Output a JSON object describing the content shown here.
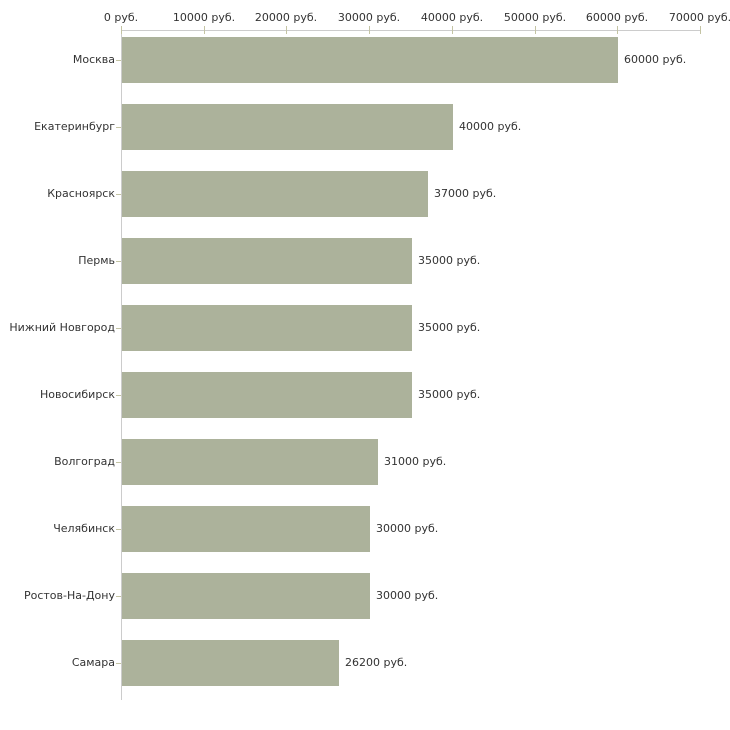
{
  "chart_data": {
    "type": "bar",
    "orientation": "horizontal",
    "title": "",
    "xlabel": "",
    "ylabel": "",
    "categories": [
      "Москва",
      "Екатеринбург",
      "Красноярск",
      "Пермь",
      "Нижний Новгород",
      "Новосибирск",
      "Волгоград",
      "Челябинск",
      "Ростов-На-Дону",
      "Самара"
    ],
    "values": [
      60000,
      40000,
      37000,
      35000,
      35000,
      35000,
      31000,
      30000,
      30000,
      26200
    ],
    "value_labels": [
      "60000 руб.",
      "40000 руб.",
      "37000 руб.",
      "35000 руб.",
      "35000 руб.",
      "35000 руб.",
      "31000 руб.",
      "30000 руб.",
      "30000 руб.",
      "26200 руб."
    ],
    "x_ticks": [
      {
        "value": 0,
        "label": "0 руб."
      },
      {
        "value": 10000,
        "label": "10000 руб."
      },
      {
        "value": 20000,
        "label": "20000 руб."
      },
      {
        "value": 30000,
        "label": "30000 руб."
      },
      {
        "value": 40000,
        "label": "40000 руб."
      },
      {
        "value": 50000,
        "label": "50000 руб."
      },
      {
        "value": 60000,
        "label": "60000 руб."
      },
      {
        "value": 70000,
        "label": "70000 руб."
      }
    ],
    "xlim": [
      0,
      70000
    ],
    "grid": false,
    "legend": "none",
    "colors": {
      "bar_fill": "#acb29b",
      "axis_line": "#cccccc",
      "tick_mark": "#c4c4a4",
      "text": "#333333",
      "background": "#ffffff"
    }
  }
}
